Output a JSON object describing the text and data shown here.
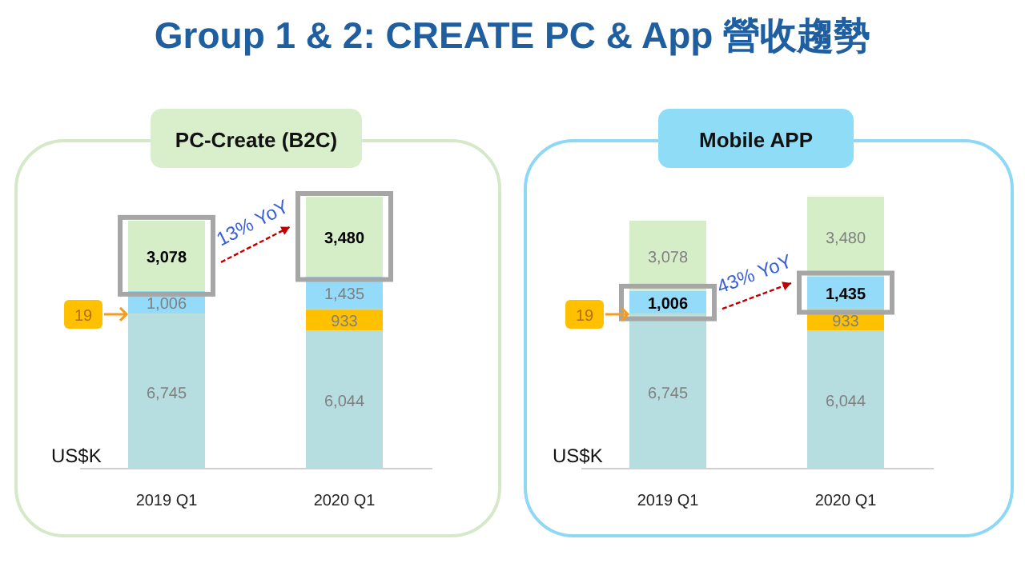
{
  "chart_data": [
    {
      "type": "bar",
      "title": "Group 1 & 2: CREATE PC & App 營收趨勢",
      "subtitle": "PC-Create (B2C)",
      "ylabel": "US$K",
      "stacked": true,
      "categories": [
        "2019 Q1",
        "2020 Q1"
      ],
      "series": [
        {
          "color": "#b6dde0",
          "values": [
            6745,
            6044
          ],
          "value_labels": [
            "6,745",
            "6,044"
          ]
        },
        {
          "color": "#ffc000",
          "values": [
            19,
            933
          ],
          "value_labels": [
            "19",
            "933"
          ]
        },
        {
          "color": "#93dbf9",
          "values": [
            1006,
            1435
          ],
          "value_labels": [
            "1,006",
            "1,435"
          ]
        },
        {
          "color": "#d5eec8",
          "values": [
            3078,
            3480
          ],
          "value_labels": [
            "**3,078**",
            "**3,480**"
          ]
        }
      ],
      "annotations": [
        "13% YoY"
      ]
    },
    {
      "type": "bar",
      "subtitle": "Mobile APP",
      "ylabel": "US$K",
      "stacked": true,
      "categories": [
        "2019 Q1",
        "2020 Q1"
      ],
      "series": [
        {
          "color": "#b6dde0",
          "values": [
            6745,
            6044
          ],
          "value_labels": [
            "6,745",
            "6,044"
          ]
        },
        {
          "color": "#ffc000",
          "values": [
            19,
            933
          ],
          "value_labels": [
            "19",
            "933"
          ]
        },
        {
          "color": "#93dbf9",
          "values": [
            1006,
            1435
          ],
          "value_labels": [
            "**1,006**",
            "**1,435**"
          ]
        },
        {
          "color": "#d5eec8",
          "values": [
            3078,
            3480
          ],
          "value_labels": [
            "3,078",
            "3,480"
          ]
        }
      ],
      "annotations": [
        "43% YoY"
      ]
    }
  ]
}
